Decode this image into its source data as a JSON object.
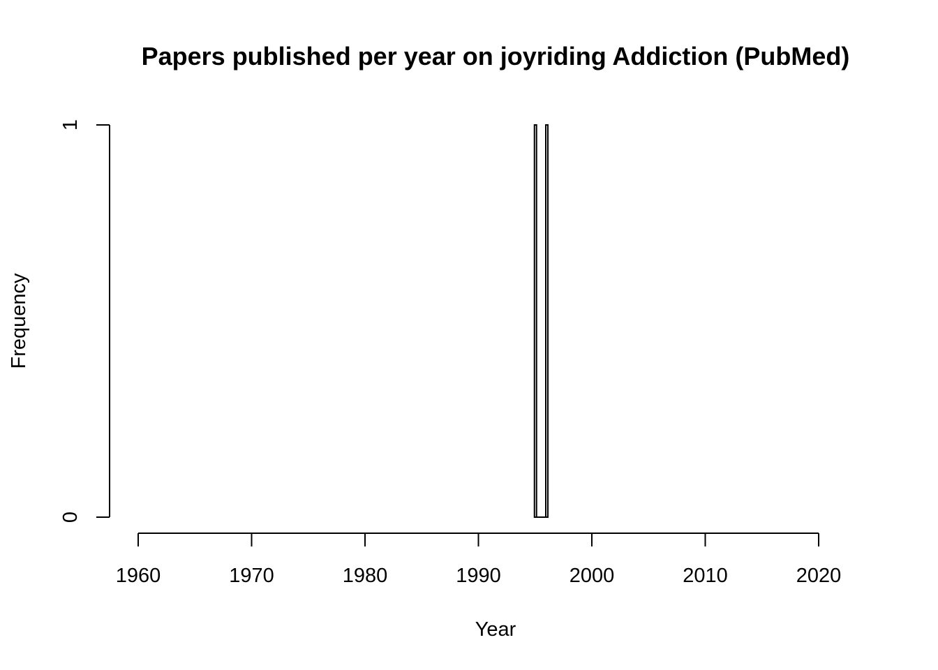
{
  "chart_data": {
    "type": "bar",
    "title": "Papers published per year on joyriding Addiction (PubMed)",
    "xlabel": "Year",
    "ylabel": "Frequency",
    "x_ticks": [
      "1960",
      "1970",
      "1980",
      "1990",
      "2000",
      "2010",
      "2020"
    ],
    "y_ticks": [
      "0",
      "1"
    ],
    "xlim": [
      1960,
      2020
    ],
    "ylim": [
      0,
      1
    ],
    "grid": false,
    "series": [
      {
        "x": [
          1995,
          1996
        ],
        "values": [
          1,
          1
        ]
      }
    ]
  }
}
